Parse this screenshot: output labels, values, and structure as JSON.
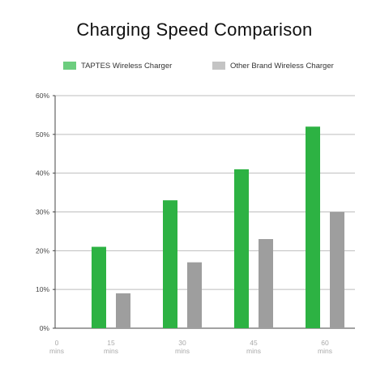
{
  "chart_data": {
    "type": "bar",
    "title": "Charging Speed Comparison",
    "categories": [
      {
        "value": "0",
        "unit": "mins"
      },
      {
        "value": "15",
        "unit": "mins"
      },
      {
        "value": "30",
        "unit": "mins"
      },
      {
        "value": "45",
        "unit": "mins"
      },
      {
        "value": "60",
        "unit": "mins"
      }
    ],
    "series": [
      {
        "name": "TAPTES Wireless Charger",
        "color": "#2db243",
        "legend_color": "#6ccd7e",
        "values": [
          0,
          21,
          33,
          41,
          52
        ]
      },
      {
        "name": "Other Brand Wireless Charger",
        "color": "#9e9e9e",
        "legend_color": "#c4c4c4",
        "values": [
          0,
          9,
          17,
          23,
          30
        ]
      }
    ],
    "yticks": [
      "0%",
      "10%",
      "20%",
      "30%",
      "40%",
      "50%",
      "60%"
    ],
    "ylim": [
      0,
      60
    ],
    "xlabel": "",
    "ylabel": "",
    "grid": true,
    "legend_position": "top"
  }
}
